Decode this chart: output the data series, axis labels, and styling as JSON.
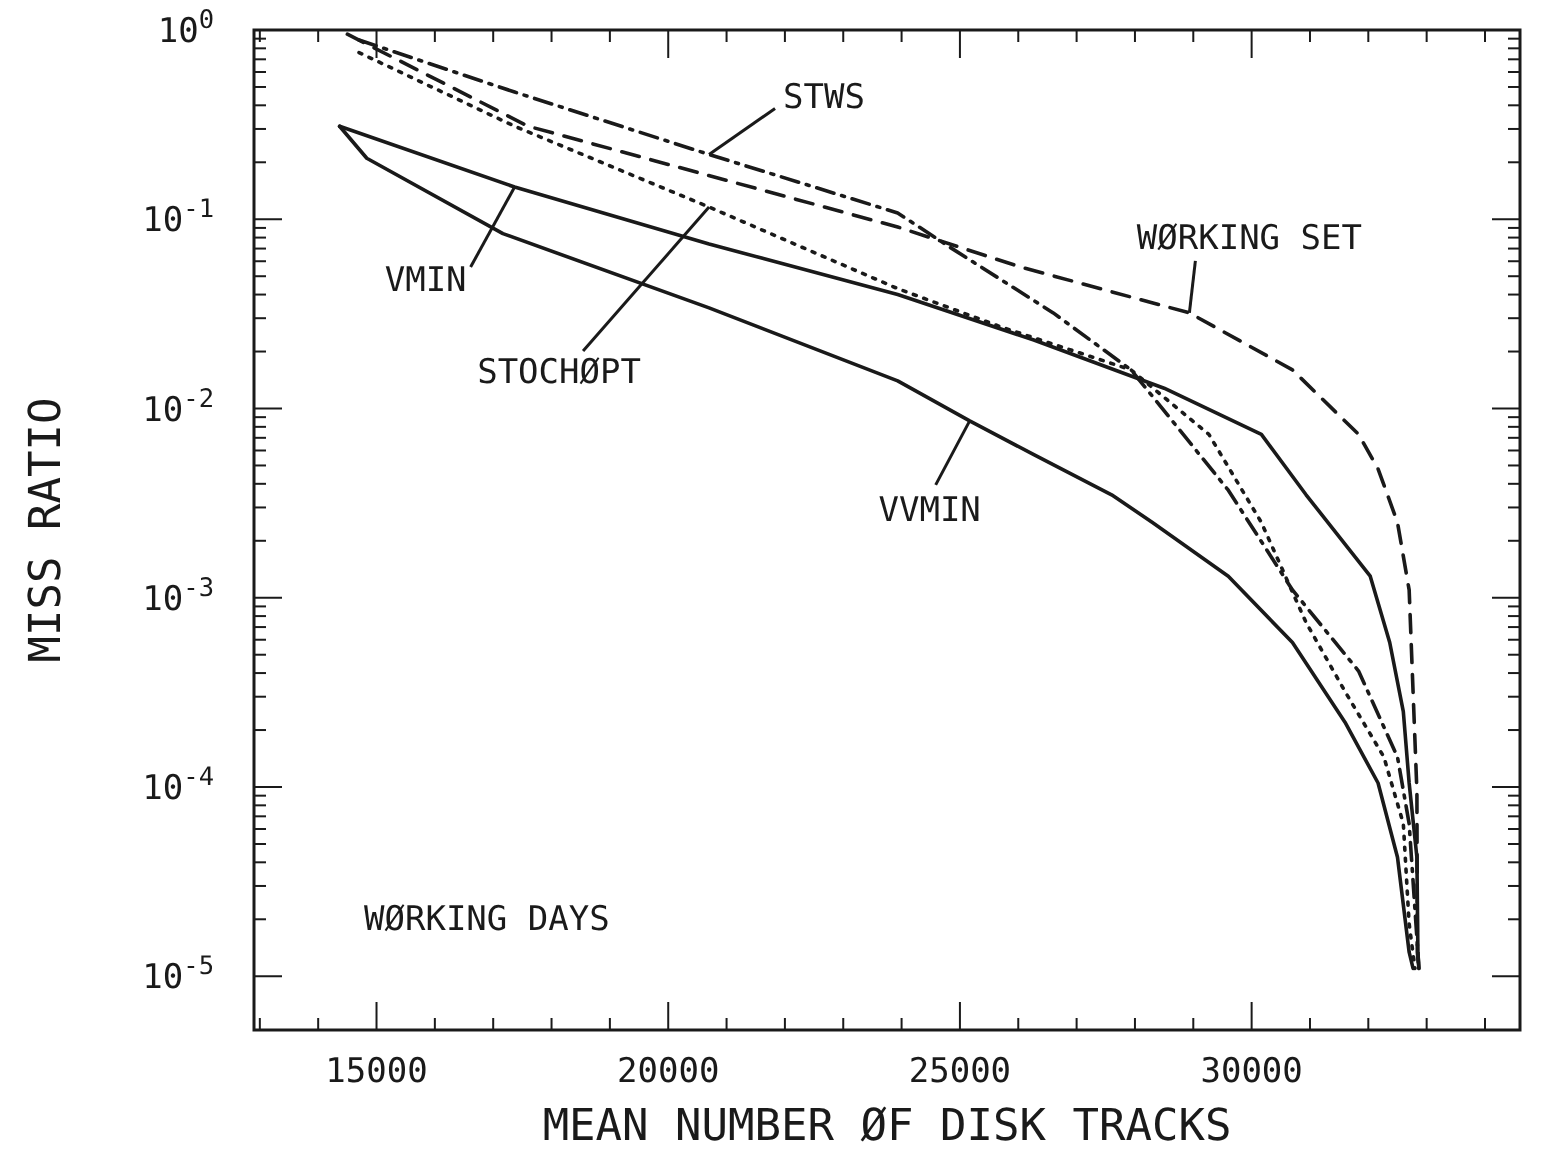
{
  "chart_data": {
    "type": "line",
    "xlabel": "MEAN NUMBER ØF DISK TRACKS",
    "ylabel": "MISS RATIO",
    "log": "y",
    "grid": false,
    "marker": "none",
    "xlim": [
      12900,
      34600
    ],
    "ylim": [
      5.2e-06,
      1
    ],
    "xticks": [
      {
        "value": 13000,
        "label": null
      },
      {
        "value": 14000,
        "label": null
      },
      15000,
      {
        "value": 16000,
        "label": null
      },
      {
        "value": 17000,
        "label": null
      },
      {
        "value": 18000,
        "label": null
      },
      {
        "value": 19000,
        "label": null
      },
      20000,
      {
        "value": 21000,
        "label": null
      },
      {
        "value": 22000,
        "label": null
      },
      {
        "value": 23000,
        "label": null
      },
      {
        "value": 24000,
        "label": null
      },
      25000,
      {
        "value": 26000,
        "label": null
      },
      {
        "value": 27000,
        "label": null
      },
      {
        "value": 28000,
        "label": null
      },
      {
        "value": 29000,
        "label": null
      },
      30000,
      {
        "value": 31000,
        "label": null
      },
      {
        "value": 32000,
        "label": null
      },
      {
        "value": 33000,
        "label": null
      },
      {
        "value": 34000,
        "label": null
      }
    ],
    "yticks": [
      {
        "value": 1,
        "label": "10$^{0}$"
      },
      {
        "value": 0.1,
        "label": "10$^{-1}$"
      },
      {
        "value": 0.01,
        "label": "10$^{-2}$"
      },
      {
        "value": 0.001,
        "label": "10$^{-3}$"
      },
      {
        "value": 0.0001,
        "label": "10$^{-4}$"
      },
      {
        "value": 1e-05,
        "label": "10$^{-5}$"
      },
      {
        "value": 0.2,
        "label": null
      },
      {
        "value": 0.3,
        "label": null
      },
      {
        "value": 0.4,
        "label": null
      },
      {
        "value": 0.5,
        "label": null
      },
      {
        "value": 0.6,
        "label": null
      },
      {
        "value": 0.7,
        "label": null
      },
      {
        "value": 0.8,
        "label": null
      },
      {
        "value": 0.9,
        "label": null
      },
      {
        "value": 0.02,
        "label": null
      },
      {
        "value": 0.03,
        "label": null
      },
      {
        "value": 0.04,
        "label": null
      },
      {
        "value": 0.05,
        "label": null
      },
      {
        "value": 0.06,
        "label": null
      },
      {
        "value": 0.07,
        "label": null
      },
      {
        "value": 0.08,
        "label": null
      },
      {
        "value": 0.09,
        "label": null
      },
      {
        "value": 0.002,
        "label": null
      },
      {
        "value": 0.003,
        "label": null
      },
      {
        "value": 0.004,
        "label": null
      },
      {
        "value": 0.005,
        "label": null
      },
      {
        "value": 0.006,
        "label": null
      },
      {
        "value": 0.007,
        "label": null
      },
      {
        "value": 0.008,
        "label": null
      },
      {
        "value": 0.009,
        "label": null
      },
      {
        "value": 0.0002,
        "label": null
      },
      {
        "value": 0.0003,
        "label": null
      },
      {
        "value": 0.0004,
        "label": null
      },
      {
        "value": 0.0005,
        "label": null
      },
      {
        "value": 0.0006,
        "label": null
      },
      {
        "value": 0.0007,
        "label": null
      },
      {
        "value": 0.0008,
        "label": null
      },
      {
        "value": 0.0009,
        "label": null
      },
      {
        "value": 2e-05,
        "label": null
      },
      {
        "value": 3e-05,
        "label": null
      },
      {
        "value": 4e-05,
        "label": null
      },
      {
        "value": 5e-05,
        "label": null
      },
      {
        "value": 6e-05,
        "label": null
      },
      {
        "value": 7e-05,
        "label": null
      },
      {
        "value": 8e-05,
        "label": null
      },
      {
        "value": 9e-05,
        "label": null
      }
    ],
    "series": [
      {
        "color": "#1a1a1a",
        "line_style": "solid",
        "x": [
          14367,
          17367,
          20700,
          23933,
          26267,
          28500,
          30167,
          30933,
          32033,
          32367,
          32600,
          32700,
          32833,
          32850,
          32867
        ],
        "values": [
          0.31,
          0.148,
          0.074,
          0.04,
          0.023,
          0.0128,
          0.0073,
          0.0035,
          0.0013,
          0.00058,
          0.00025,
          0.000105,
          4.25e-05,
          1.34e-05,
          1.1e-05
        ]
      },
      {
        "color": "#1a1a1a",
        "line_style": "solid",
        "x": [
          14367,
          14833,
          17167,
          20700,
          23933,
          25167,
          26267,
          27600,
          28300,
          29600,
          30700,
          31600,
          32167,
          32500,
          32700,
          32767
        ],
        "values": [
          0.31,
          0.21,
          0.084,
          0.034,
          0.014,
          0.0086,
          0.0057,
          0.0035,
          0.0025,
          0.0013,
          0.00058,
          0.00022,
          0.000105,
          4.25e-05,
          1.34e-05,
          1.1e-05
        ]
      },
      {
        "color": "#1a1a1a",
        "line_style": "dotted",
        "x": [
          14700,
          17367,
          20700,
          23933,
          25700,
          27933,
          29267,
          30167,
          30933,
          31600,
          32267,
          32600,
          32700,
          32800
        ],
        "values": [
          0.76,
          0.31,
          0.116,
          0.043,
          0.027,
          0.016,
          0.0073,
          0.0025,
          0.00074,
          0.00032,
          0.000144,
          6.4e-05,
          1.89e-05,
          1.1e-05
        ]
      },
      {
        "color": "#1a1a1a",
        "line_style": "dashdot",
        "x": [
          14700,
          17367,
          20700,
          23933,
          24833,
          26600,
          27933,
          29600,
          30700,
          31833,
          32500,
          32700,
          32833,
          32867
        ],
        "values": [
          0.885,
          0.47,
          0.22,
          0.108,
          0.071,
          0.032,
          0.016,
          0.0037,
          0.0011,
          0.00041,
          0.000144,
          6.4e-05,
          1.59e-05,
          1.1e-05
        ]
      },
      {
        "color": "#1a1a1a",
        "line_style": "dashed",
        "x": [
          14500,
          17600,
          23933,
          26033,
          28933,
          30700,
          31833,
          32167,
          32500,
          32700,
          32767,
          32833,
          32840,
          32867
        ],
        "values": [
          0.95,
          0.31,
          0.091,
          0.056,
          0.032,
          0.016,
          0.0073,
          0.0048,
          0.0025,
          0.0011,
          0.00032,
          9.5e-05,
          1.34e-05,
          1.1e-05
        ]
      }
    ],
    "annotations": [
      {
        "text": "VMIN",
        "x": 17367,
        "y": 0.148
      },
      {
        "text": "VVMIN",
        "x": 25167,
        "y": 0.0086
      },
      {
        "text": "STOCHØPT",
        "x": 20700,
        "y": 0.116
      },
      {
        "text": "STWS",
        "x": 20700,
        "y": 0.22
      },
      {
        "text": "WØRKING SET",
        "x": 28933,
        "y": 0.032
      },
      "WØRKING DAYS"
    ]
  }
}
